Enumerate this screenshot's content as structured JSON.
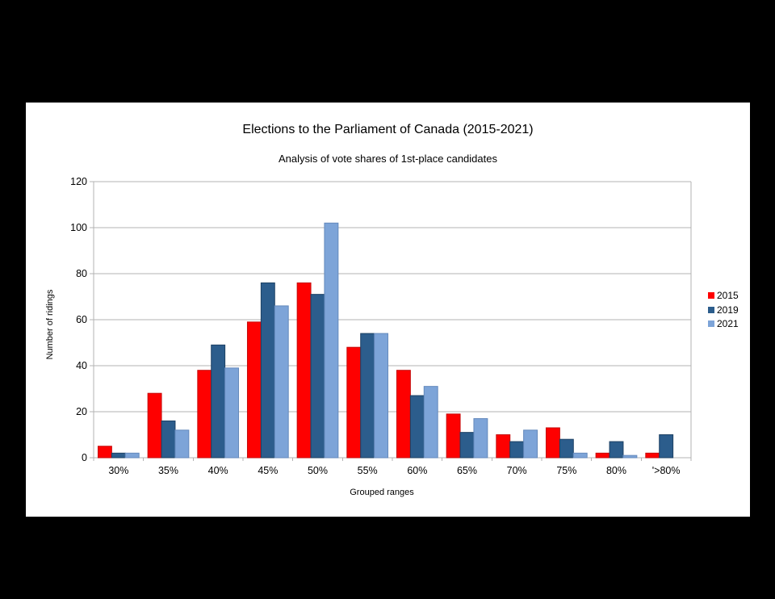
{
  "page_background": "#000000",
  "panel_background": "#ffffff",
  "chart_data": {
    "type": "bar",
    "title": "Elections to the Parliament of Canada (2015-2021)",
    "subtitle": "Analysis of vote shares of 1st-place candidates",
    "xlabel": "Grouped ranges",
    "ylabel": "Number of ridings",
    "categories": [
      "30%",
      "35%",
      "40%",
      "45%",
      "50%",
      "55%",
      "60%",
      "65%",
      "70%",
      "75%",
      "80%",
      "'>80%"
    ],
    "series": [
      {
        "name": "2015",
        "color": "#fe0000",
        "edge_color": "#c50a0a",
        "values": [
          5,
          28,
          38,
          59,
          76,
          48,
          38,
          19,
          10,
          13,
          2,
          2
        ]
      },
      {
        "name": "2019",
        "color": "#2c5d8c",
        "edge_color": "#1d4164",
        "values": [
          2,
          16,
          49,
          76,
          71,
          54,
          27,
          11,
          7,
          8,
          7,
          10
        ]
      },
      {
        "name": "2021",
        "color": "#7da4d8",
        "edge_color": "#6389bc",
        "values": [
          2,
          12,
          39,
          66,
          102,
          54,
          31,
          17,
          12,
          2,
          1,
          0
        ]
      }
    ],
    "ylim": [
      0,
      120
    ],
    "y_tick_step": 20,
    "y_tick_labels": [
      "0",
      "20",
      "40",
      "60",
      "80",
      "100",
      "120"
    ],
    "grid": true,
    "legend_position": "right",
    "axis_color": "#b3b3b3",
    "grid_color": "#b3b3b3",
    "text_color": "#000000"
  }
}
